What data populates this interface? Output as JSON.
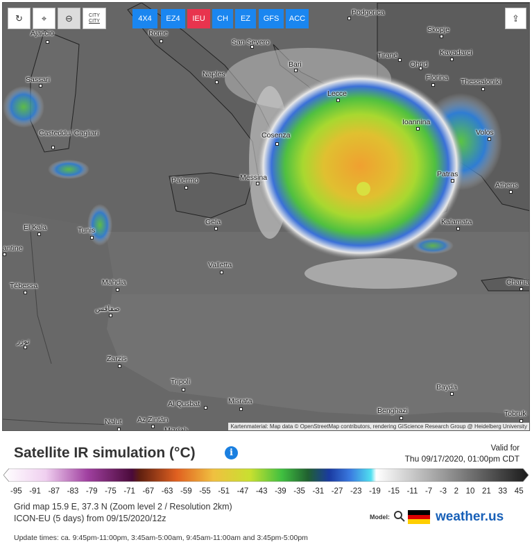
{
  "toolbar": {
    "city_label_1": "CITY",
    "city_label_2": "CITY",
    "models": [
      {
        "label": "4X4",
        "color": "#1a86f0"
      },
      {
        "label": "EZ4",
        "color": "#1a86f0"
      },
      {
        "label": "IEU",
        "color": "#e8344e"
      },
      {
        "label": "CH",
        "color": "#1a86f0"
      },
      {
        "label": "EZ",
        "color": "#1a86f0"
      },
      {
        "label": "GFS",
        "color": "#1a86f0"
      },
      {
        "label": "ACC",
        "color": "#1a86f0"
      }
    ]
  },
  "map": {
    "cities": [
      {
        "name": "Ajaccio"
      },
      {
        "name": "Rome"
      },
      {
        "name": "San Severo"
      },
      {
        "name": "Podgorica"
      },
      {
        "name": "Skopje"
      },
      {
        "name": "Tiranë"
      },
      {
        "name": "Kavadarci"
      },
      {
        "name": "Ohrid"
      },
      {
        "name": "Bari"
      },
      {
        "name": "Naples"
      },
      {
        "name": "Florina"
      },
      {
        "name": "Sassari"
      },
      {
        "name": "Thessaloniki"
      },
      {
        "name": "Lecce"
      },
      {
        "name": "Ioannina"
      },
      {
        "name": "Casteddu/ Cagliari"
      },
      {
        "name": "Cosenza"
      },
      {
        "name": "Volos"
      },
      {
        "name": "Patras"
      },
      {
        "name": "Palermo"
      },
      {
        "name": "Messina"
      },
      {
        "name": "Athens"
      },
      {
        "name": "El Kala"
      },
      {
        "name": "Tunis"
      },
      {
        "name": "Gela"
      },
      {
        "name": "Kalamata"
      },
      {
        "name": "antine"
      },
      {
        "name": "Valletta"
      },
      {
        "name": "Tébessa"
      },
      {
        "name": "Mahdia"
      },
      {
        "name": "Chania"
      },
      {
        "name": "صفاقس"
      },
      {
        "name": "توزر"
      },
      {
        "name": "Zarzis"
      },
      {
        "name": "Tripoli"
      },
      {
        "name": "Bayda"
      },
      {
        "name": "Al Qusbat"
      },
      {
        "name": "Misrata"
      },
      {
        "name": "Benghazi"
      },
      {
        "name": "Tobruk"
      },
      {
        "name": "Az Zintān"
      },
      {
        "name": "Nalut"
      },
      {
        "name": "Mizdah"
      }
    ],
    "attribution": "Kartenmaterial: Map data © OpenStreetMap contributors, rendering GIScience Research Group @ Heidelberg University"
  },
  "legend": {
    "title": "Satellite IR simulation (°C)",
    "info": "i",
    "valid_for": "Valid for",
    "valid_date": "Thu 09/17/2020, 01:00pm CDT",
    "ticks": [
      "-95",
      "-91",
      "-87",
      "-83",
      "-79",
      "-75",
      "-71",
      "-67",
      "-63",
      "-59",
      "-55",
      "-51",
      "-47",
      "-43",
      "-39",
      "-35",
      "-31",
      "-27",
      "-23",
      "-19",
      "-15",
      "-11",
      "-7",
      "-3",
      "2",
      "10",
      "21",
      "33",
      "45"
    ]
  },
  "info": {
    "grid_line": "Grid map 15.9 E, 37.3 N (Zoom level 2 / Resolution 2km)",
    "model_line": "ICON-EU (5 days) from 09/15/2020/12z",
    "model_label": "Model:",
    "brand": "weather.us",
    "update_times": "Update times: ca. 9:45pm-11:00pm, 3:45am-5:00am, 9:45am-11:00am and 3:45pm-5:00pm"
  }
}
